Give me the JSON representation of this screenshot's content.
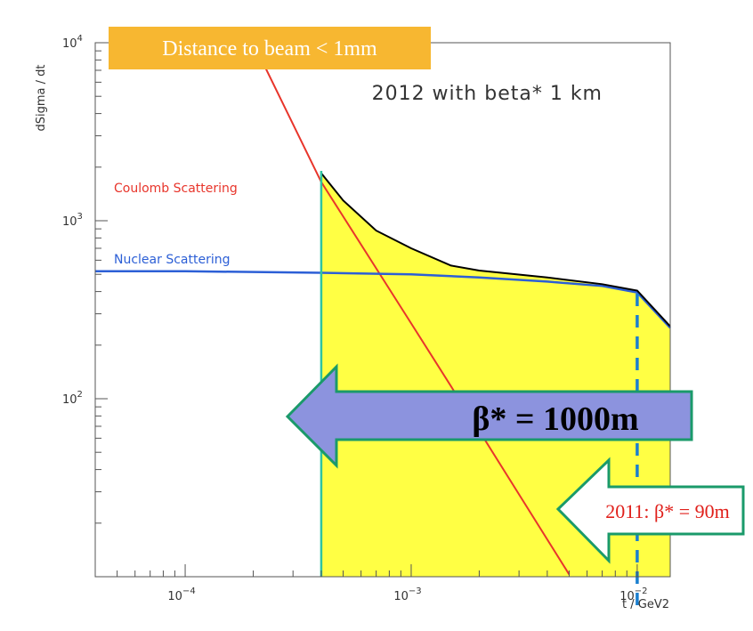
{
  "chart_data": {
    "type": "line",
    "title": "2012 with beta* 1 km",
    "xlabel": "t / GeV2",
    "ylabel": "dSigma / dt",
    "xscale": "log",
    "yscale": "log",
    "xlim": [
      4e-05,
      0.014
    ],
    "ylim": [
      10,
      10000
    ],
    "x_ticks": [
      {
        "value": 0.0001,
        "base": "10",
        "exp": "−4"
      },
      {
        "value": 0.001,
        "base": "10",
        "exp": "−3"
      },
      {
        "value": 0.01,
        "base": "10",
        "exp": "−2"
      }
    ],
    "y_ticks": [
      {
        "value": 100,
        "base": "10",
        "exp": "2"
      },
      {
        "value": 1000,
        "base": "10",
        "exp": "3"
      },
      {
        "value": 10000,
        "base": "10",
        "exp": "4"
      }
    ],
    "series": [
      {
        "name": "Coulomb Scattering",
        "color": "#e8352b",
        "x": [
          0.0002,
          0.0004,
          0.0007,
          0.001,
          0.002,
          0.003,
          0.005
        ],
        "values": [
          10000,
          1650,
          540,
          265,
          66,
          29,
          10.3
        ]
      },
      {
        "name": "Nuclear Scattering",
        "color": "#2c5fd6",
        "x": [
          4e-05,
          0.0001,
          0.0004,
          0.001,
          0.002,
          0.004,
          0.007,
          0.01,
          0.014
        ],
        "values": [
          520,
          520,
          510,
          500,
          480,
          455,
          430,
          395,
          250
        ]
      },
      {
        "name": "",
        "color": "#000000",
        "x": [
          0.0004,
          0.0005,
          0.0007,
          0.001,
          0.0015,
          0.002,
          0.004,
          0.007,
          0.01,
          0.014
        ],
        "values": [
          1850,
          1300,
          880,
          700,
          560,
          525,
          480,
          440,
          405,
          255
        ]
      }
    ],
    "shaded_region": {
      "x_from": 0.0004,
      "x_to": 0.014,
      "color": "#ffff44"
    },
    "vertical_lines": [
      {
        "x": 0.0004,
        "color": "#2ec4a0",
        "style": "solid"
      },
      {
        "x": 0.01,
        "color": "#1a7fd0",
        "style": "dashed"
      }
    ],
    "annotations": {
      "banner": "Distance to beam < 1mm",
      "arrow_big": "β* = 1000m",
      "arrow_small": "2011: β* = 90m"
    }
  },
  "colors": {
    "banner_bg": "#f7b731",
    "arrow_big_fill": "#8c93de",
    "arrow_stroke": "#1a9a6a",
    "arrow_small_text": "#e0201b"
  }
}
